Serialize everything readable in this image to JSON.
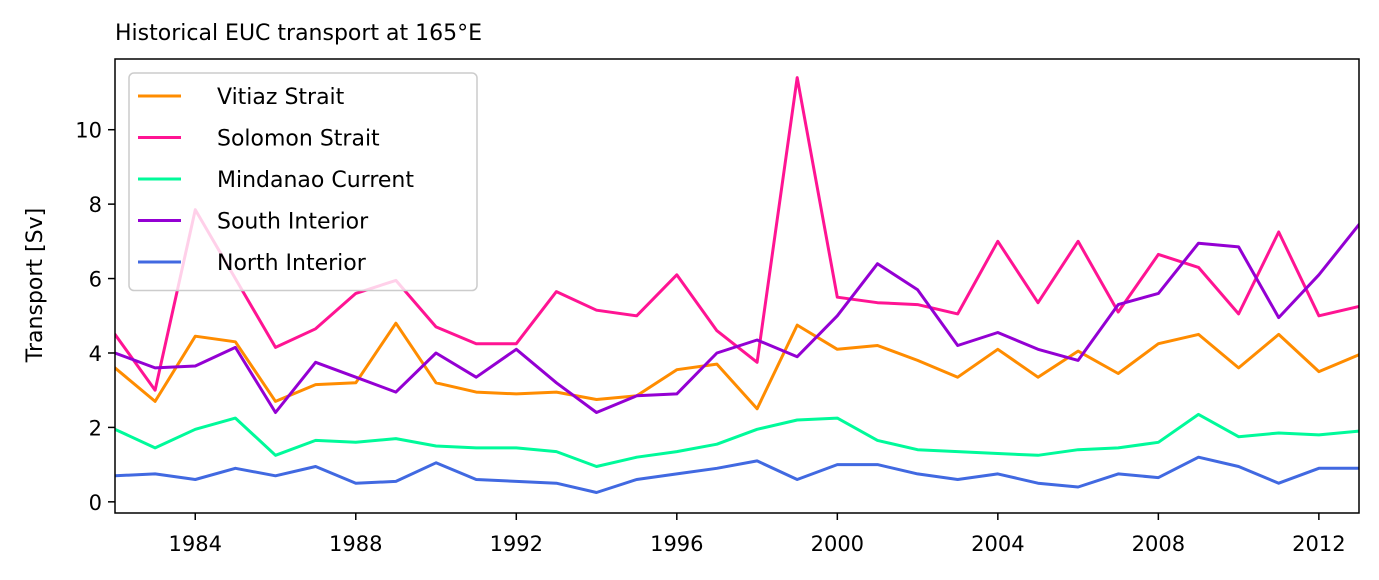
{
  "chart_data": {
    "type": "line",
    "title": "Historical EUC transport at 165°E",
    "xlabel": "",
    "ylabel": "Transport [Sv]",
    "xlim": [
      1982,
      2013
    ],
    "ylim": [
      -0.3,
      11.9
    ],
    "xticks": [
      1984,
      1988,
      1992,
      1996,
      2000,
      2004,
      2008,
      2012
    ],
    "yticks": [
      0,
      2,
      4,
      6,
      8,
      10
    ],
    "grid": false,
    "legend_position": "top-left",
    "x": [
      1982,
      1983,
      1984,
      1985,
      1986,
      1987,
      1988,
      1989,
      1990,
      1991,
      1992,
      1993,
      1994,
      1995,
      1996,
      1997,
      1998,
      1999,
      2000,
      2001,
      2002,
      2003,
      2004,
      2005,
      2006,
      2007,
      2008,
      2009,
      2010,
      2011,
      2012,
      2013
    ],
    "series": [
      {
        "name": "Vitiaz Strait",
        "color": "#ff8c00",
        "values": [
          3.6,
          2.7,
          4.45,
          4.3,
          2.7,
          3.15,
          3.2,
          4.8,
          3.2,
          2.95,
          2.9,
          2.95,
          2.75,
          2.85,
          3.55,
          3.7,
          2.5,
          4.75,
          4.1,
          4.2,
          3.8,
          3.35,
          4.1,
          3.35,
          4.05,
          3.45,
          4.25,
          4.5,
          3.6,
          4.5,
          3.5,
          3.95
        ]
      },
      {
        "name": "Solomon Strait",
        "color": "#ff1493",
        "values": [
          4.5,
          3.0,
          7.85,
          6.0,
          4.15,
          4.65,
          5.6,
          5.95,
          4.7,
          4.25,
          4.25,
          5.65,
          5.15,
          5.0,
          6.1,
          4.6,
          3.75,
          11.4,
          5.5,
          5.35,
          5.3,
          5.05,
          7.0,
          5.35,
          7.0,
          5.1,
          6.65,
          6.3,
          5.05,
          7.25,
          5.0,
          5.25
        ]
      },
      {
        "name": "Mindanao Current",
        "color": "#00fa9a",
        "values": [
          1.95,
          1.45,
          1.95,
          2.25,
          1.25,
          1.65,
          1.6,
          1.7,
          1.5,
          1.45,
          1.45,
          1.35,
          0.95,
          1.2,
          1.35,
          1.55,
          1.95,
          2.2,
          2.25,
          1.65,
          1.4,
          1.35,
          1.3,
          1.25,
          1.4,
          1.45,
          1.6,
          2.35,
          1.75,
          1.85,
          1.8,
          1.9
        ]
      },
      {
        "name": "South Interior",
        "color": "#9400d3",
        "values": [
          4.0,
          3.6,
          3.65,
          4.15,
          2.4,
          3.75,
          3.35,
          2.95,
          4.0,
          3.35,
          4.1,
          3.2,
          2.4,
          2.85,
          2.9,
          4.0,
          4.35,
          3.9,
          5.0,
          6.4,
          5.7,
          4.2,
          4.55,
          4.1,
          3.8,
          5.3,
          5.6,
          6.95,
          6.85,
          4.95,
          6.1,
          7.45
        ]
      },
      {
        "name": "North Interior",
        "color": "#4169e1",
        "values": [
          0.7,
          0.75,
          0.6,
          0.9,
          0.7,
          0.95,
          0.5,
          0.55,
          1.05,
          0.6,
          0.55,
          0.5,
          0.25,
          0.6,
          0.75,
          0.9,
          1.1,
          0.6,
          1.0,
          1.0,
          0.75,
          0.6,
          0.75,
          0.5,
          0.4,
          0.75,
          0.65,
          1.2,
          0.95,
          0.5,
          0.9,
          0.9
        ]
      }
    ]
  }
}
